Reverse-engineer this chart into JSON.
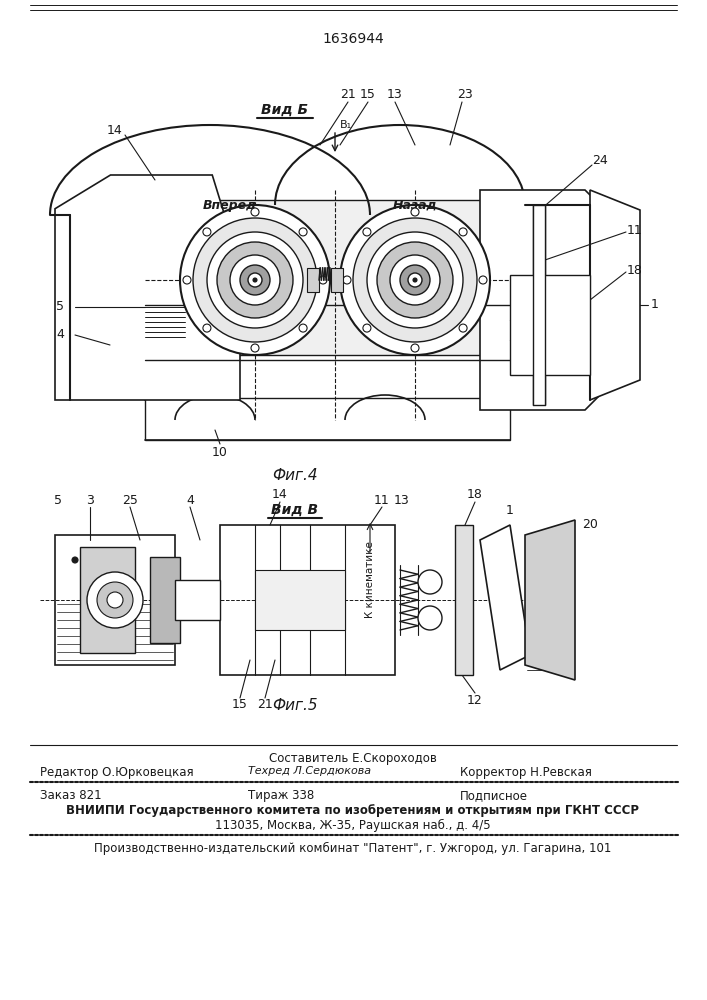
{
  "patent_number": "1636944",
  "bg_color": "#ffffff",
  "fig4_label": "Фиг.4",
  "fig5_label": "Фиг.5",
  "vid_b_label": "Вид Б",
  "vid_v_label": "Вид В",
  "caption_line1": "Составитель Е.Скороходов",
  "caption_line2_left": "Редактор О.Юрковецкая",
  "caption_line2_mid": "Техред Л.Сердюкова",
  "caption_line2_right": "Корректор Н.Ревская",
  "caption_line3_left": "Заказ 821",
  "caption_line3_mid": "Тираж 338",
  "caption_line3_right": "Подписное",
  "caption_line4": "ВНИИПИ Государственного комитета по изобретениям и открытиям при ГКНТ СССР",
  "caption_line5": "113035, Москва, Ж-35, Раушская наб., д. 4/5",
  "caption_line6": "Производственно-издательский комбинат \"Патент\", г. Ужгород, ул. Гагарина, 101",
  "text_color": "#1a1a1a",
  "line_color": "#1a1a1a"
}
